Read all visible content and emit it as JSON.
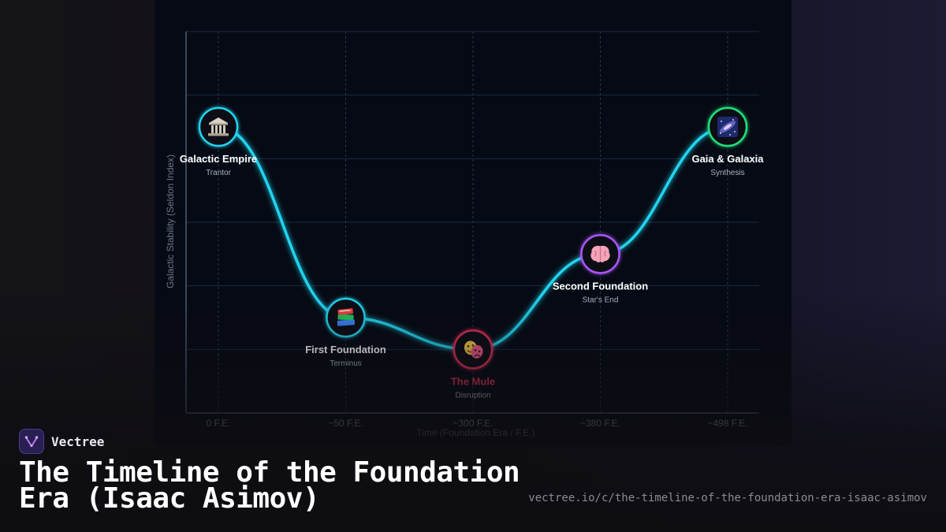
{
  "colors": {
    "line": "#22d3ee",
    "grid": "#1c2a3e",
    "axis": "#3a4a5e",
    "tick_text": "#8a94a3",
    "axis_label_text": "#6b7686",
    "label_text": "#ffffff",
    "sub_text": "#aab3bf",
    "mule": "#e0325a"
  },
  "chart_data": {
    "type": "line",
    "title": "",
    "xlabel": "Time (Foundation Era / F.E.)",
    "ylabel": "Galactic Stability (Seldon Index)",
    "categories": [
      "0 F.E.",
      "~50 F.E.",
      "~300 F.E.",
      "~380 F.E.",
      "~498 F.E."
    ],
    "ylim": [
      0,
      6
    ],
    "grid": true,
    "points": [
      {
        "category": "0 F.E.",
        "value": 4.5,
        "label": "Galactic Empire",
        "sublabel": "Trantor",
        "icon": "classical-building-icon",
        "ring_color": "#22d3ee"
      },
      {
        "category": "~50 F.E.",
        "value": 1.5,
        "label": "First Foundation",
        "sublabel": "Terminus",
        "icon": "books-icon",
        "ring_color": "#22d3ee"
      },
      {
        "category": "~300 F.E.",
        "value": 1.0,
        "label": "The Mule",
        "sublabel": "Disruption",
        "icon": "theater-masks-icon",
        "ring_color": "#e0325a"
      },
      {
        "category": "~380 F.E.",
        "value": 2.5,
        "label": "Second Foundation",
        "sublabel": "Star's End",
        "icon": "brain-icon",
        "ring_color": "#a855f7"
      },
      {
        "category": "~498 F.E.",
        "value": 4.5,
        "label": "Gaia & Galaxia",
        "sublabel": "Synthesis",
        "icon": "milky-way-icon",
        "ring_color": "#22e07a"
      }
    ]
  },
  "brand": {
    "name": "Vectree",
    "logo_icon": "vectree-logo-icon"
  },
  "title": "The Timeline of the Foundation Era (Isaac Asimov)",
  "url": "vectree.io/c/the-timeline-of-the-foundation-era-isaac-asimov"
}
